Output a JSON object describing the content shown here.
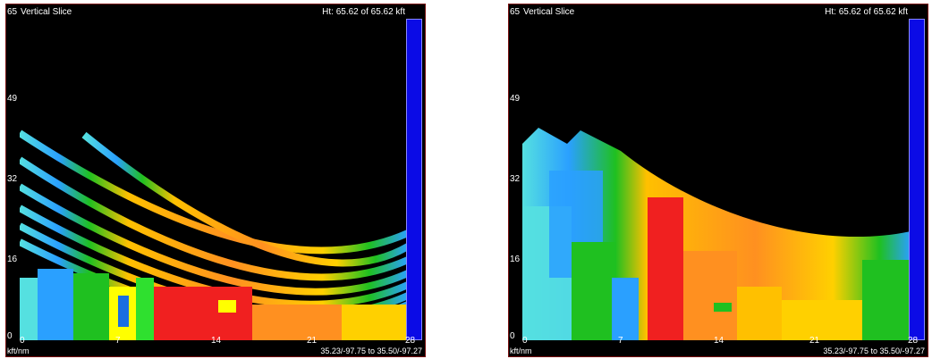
{
  "panels": [
    {
      "title": "Vertical Slice",
      "height_readout": "Ht: 65.62 of 65.62 kft",
      "y_ticks": [
        "65",
        "49",
        "32",
        "16",
        "0"
      ],
      "x_ticks": [
        "0",
        "7",
        "14",
        "21",
        "28"
      ],
      "unit": "kft/nm",
      "coords": "35.23/-97.75 to 35.50/-97.27",
      "colorbar_color": "#0b0be6"
    },
    {
      "title": "Vertical Slice",
      "height_readout": "Ht: 65.62 of 65.62 kft",
      "y_ticks": [
        "65",
        "49",
        "32",
        "16",
        "0"
      ],
      "x_ticks": [
        "0",
        "7",
        "14",
        "21",
        "28"
      ],
      "unit": "kft/nm",
      "coords": "35.23/-97.75 to 35.50/-97.27",
      "colorbar_color": "#0b0be6"
    }
  ],
  "colors": {
    "background": "#000000",
    "border": "#7a1010",
    "palette": [
      "#55e0e0",
      "#2aa0ff",
      "#1a6ee0",
      "#1fc020",
      "#2fe02f",
      "#ffff00",
      "#ffc000",
      "#ff9020",
      "#f02020"
    ]
  }
}
